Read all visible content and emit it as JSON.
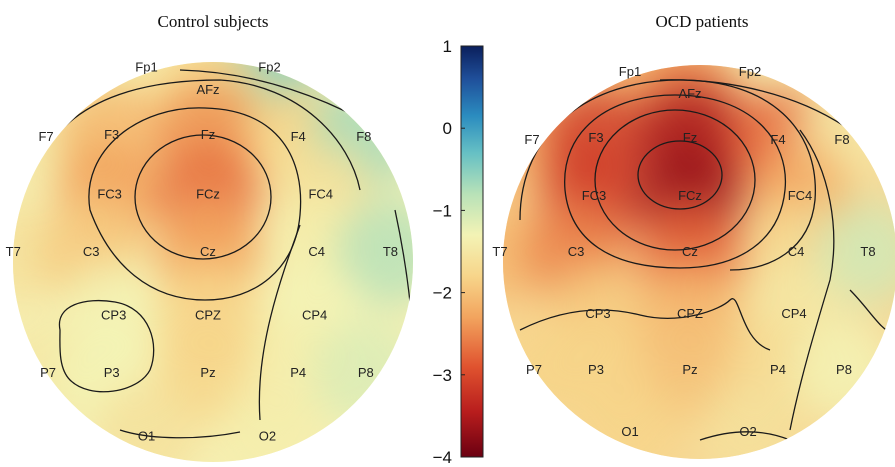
{
  "chart_data": {
    "type": "heatmap",
    "subtype": "topographic scalp map",
    "colormap": [
      "#0b1f5c",
      "#1f4f9a",
      "#2b8cbf",
      "#66c0c4",
      "#b8e2b8",
      "#f3f3b5",
      "#f7d58a",
      "#f2a45e",
      "#e0532f",
      "#b81d1d",
      "#6b0011"
    ],
    "colorbar": {
      "range": [
        -4,
        1
      ],
      "ticks": [
        "1",
        "0",
        "−1",
        "−2",
        "−3",
        "−4"
      ]
    },
    "panels": [
      {
        "title": "Control subjects",
        "electrodes": [
          {
            "label": "Fp1",
            "value": -1.6
          },
          {
            "label": "Fp2",
            "value": -0.7
          },
          {
            "label": "AFz",
            "value": -2.0
          },
          {
            "label": "F7",
            "value": -1.7
          },
          {
            "label": "F3",
            "value": -2.3
          },
          {
            "label": "Fz",
            "value": -2.6
          },
          {
            "label": "F4",
            "value": -2.0
          },
          {
            "label": "F8",
            "value": -0.9
          },
          {
            "label": "FC3",
            "value": -2.5
          },
          {
            "label": "FCz",
            "value": -2.8
          },
          {
            "label": "FC4",
            "value": -1.8
          },
          {
            "label": "T7",
            "value": -1.8
          },
          {
            "label": "C3",
            "value": -2.1
          },
          {
            "label": "Cz",
            "value": -2.5
          },
          {
            "label": "C4",
            "value": -1.6
          },
          {
            "label": "T8",
            "value": -1.0
          },
          {
            "label": "CP3",
            "value": -1.5
          },
          {
            "label": "CPZ",
            "value": -2.0
          },
          {
            "label": "CP4",
            "value": -1.5
          },
          {
            "label": "P7",
            "value": -1.7
          },
          {
            "label": "P3",
            "value": -1.5
          },
          {
            "label": "Pz",
            "value": -2.0
          },
          {
            "label": "P4",
            "value": -1.6
          },
          {
            "label": "P8",
            "value": -1.3
          },
          {
            "label": "O1",
            "value": -1.8
          },
          {
            "label": "O2",
            "value": -1.6
          }
        ]
      },
      {
        "title": "OCD patients",
        "electrodes": [
          {
            "label": "Fp1",
            "value": -2.2
          },
          {
            "label": "Fp2",
            "value": -1.5
          },
          {
            "label": "AFz",
            "value": -2.7
          },
          {
            "label": "F7",
            "value": -2.4
          },
          {
            "label": "F3",
            "value": -3.2
          },
          {
            "label": "Fz",
            "value": -3.6
          },
          {
            "label": "F4",
            "value": -2.9
          },
          {
            "label": "F8",
            "value": -1.7
          },
          {
            "label": "FC3",
            "value": -3.2
          },
          {
            "label": "FCz",
            "value": -3.7
          },
          {
            "label": "FC4",
            "value": -2.4
          },
          {
            "label": "T7",
            "value": -2.3
          },
          {
            "label": "C3",
            "value": -2.7
          },
          {
            "label": "Cz",
            "value": -2.9
          },
          {
            "label": "C4",
            "value": -1.9
          },
          {
            "label": "T8",
            "value": -1.2
          },
          {
            "label": "CP3",
            "value": -2.1
          },
          {
            "label": "CPZ",
            "value": -2.3
          },
          {
            "label": "CP4",
            "value": -1.7
          },
          {
            "label": "P7",
            "value": -2.0
          },
          {
            "label": "P3",
            "value": -2.0
          },
          {
            "label": "Pz",
            "value": -2.2
          },
          {
            "label": "P4",
            "value": -1.9
          },
          {
            "label": "P8",
            "value": -1.5
          },
          {
            "label": "O1",
            "value": -2.0
          },
          {
            "label": "O2",
            "value": -1.8
          }
        ]
      }
    ]
  }
}
